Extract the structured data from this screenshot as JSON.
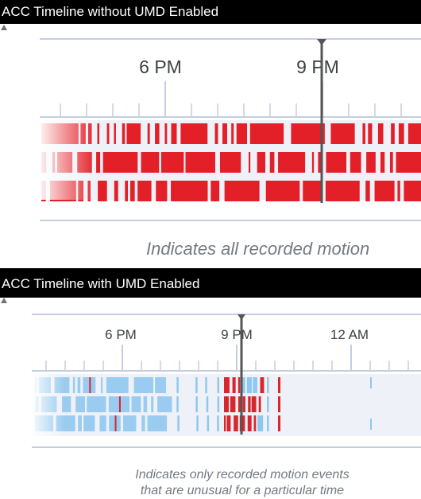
{
  "panel1": {
    "title": "ACC Timeline without UMD Enabled",
    "time_labels": [
      "6 PM",
      "9 PM"
    ],
    "caption": "Indicates all recorded motion"
  },
  "panel2": {
    "title": "ACC Timeline with UMD Enabled",
    "time_labels": [
      "6 PM",
      "9 PM",
      "12 AM"
    ],
    "caption_line1": "Indicates only recorded motion events",
    "caption_line2": "that are unusual for a particular time"
  },
  "colors": {
    "header_bg": "#000000",
    "header_text": "#ffffff",
    "motion_event": "#e32028",
    "unusual_event": "#d8262d",
    "normal_event": "#8fc8ee",
    "track_bg": "#eef1f8",
    "axis": "#c5cde0",
    "playhead": "#555555",
    "caption": "#737a82"
  }
}
